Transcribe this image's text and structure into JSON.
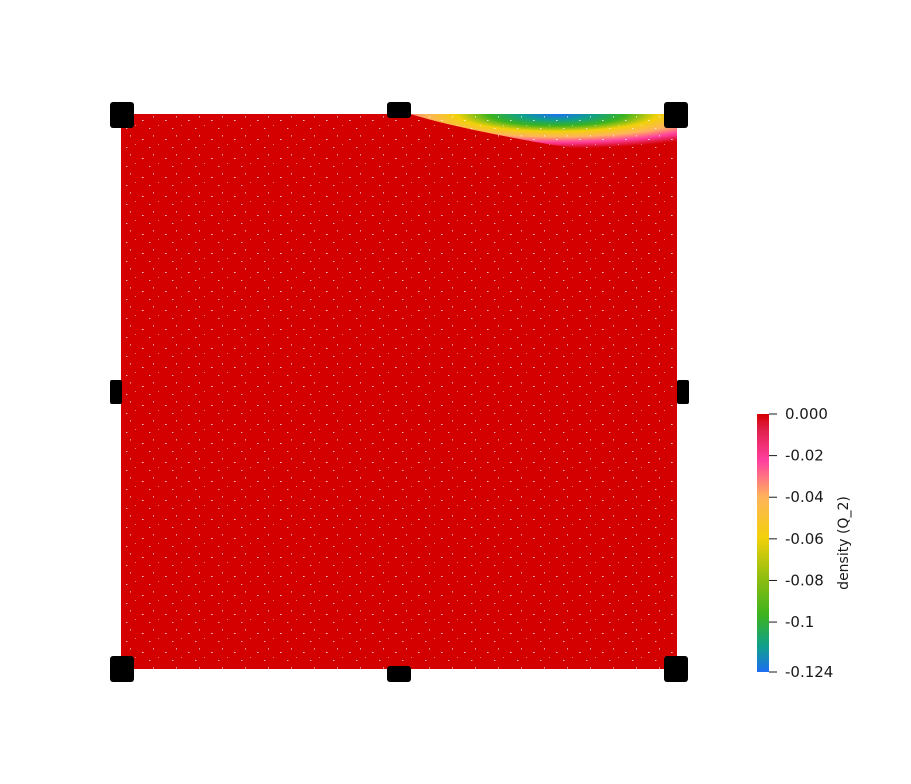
{
  "colors": {
    "background": "#ffffff",
    "field": "#d40000",
    "markers": "#000000",
    "colormap": [
      "#d40000",
      "#ff3f9f",
      "#ffb35c",
      "#f2d10a",
      "#3cb31f",
      "#0fa08c",
      "#1d6ef2"
    ]
  },
  "colorbar": {
    "title": "density (Q_2)",
    "range": [
      -0.124,
      0.0
    ],
    "ticks": [
      {
        "value": 0.0,
        "label": "0.000"
      },
      {
        "value": -0.02,
        "label": "-0.02"
      },
      {
        "value": -0.04,
        "label": "-0.04"
      },
      {
        "value": -0.06,
        "label": "-0.06"
      },
      {
        "value": -0.08,
        "label": "-0.08"
      },
      {
        "value": -0.1,
        "label": "-0.1"
      },
      {
        "value": -0.124,
        "label": "-0.124"
      }
    ]
  }
}
